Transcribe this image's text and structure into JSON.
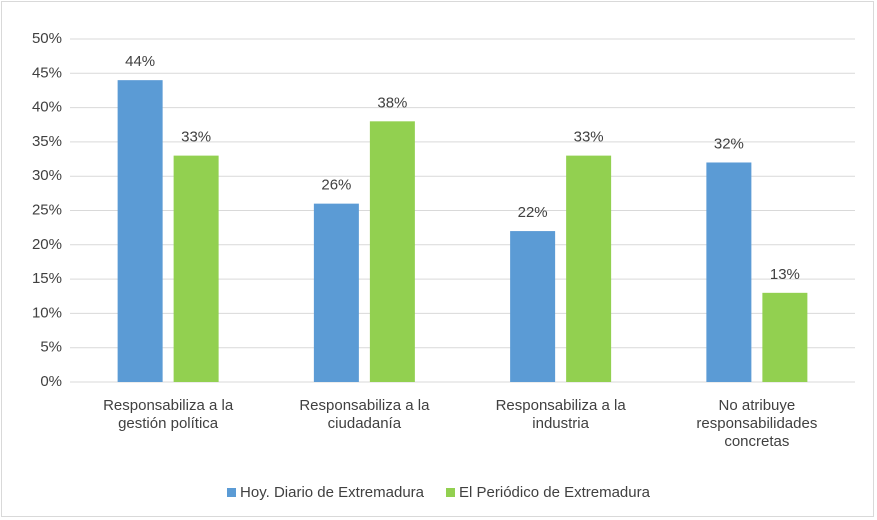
{
  "chart_data": {
    "type": "bar",
    "categories": [
      "Responsabiliza a la gestión política",
      "Responsabiliza a la ciudadanía",
      "Responsabiliza a la industria",
      "No atribuye responsabilidades concretas"
    ],
    "series": [
      {
        "name": "Hoy. Diario de Extremadura",
        "color": "#5b9bd5",
        "values": [
          44,
          26,
          22,
          32
        ],
        "value_labels": [
          "44%",
          "26%",
          "22%",
          "32%"
        ]
      },
      {
        "name": "El Periódico de Extremadura",
        "color": "#92d050",
        "values": [
          33,
          38,
          33,
          13
        ],
        "value_labels": [
          "33%",
          "38%",
          "33%",
          "13%"
        ]
      }
    ],
    "ylim": [
      0,
      50
    ],
    "yticks": [
      {
        "value": 0,
        "label": "0%"
      },
      {
        "value": 5,
        "label": "5%"
      },
      {
        "value": 10,
        "label": "10%"
      },
      {
        "value": 15,
        "label": "15%"
      },
      {
        "value": 20,
        "label": "20%"
      },
      {
        "value": 25,
        "label": "25%"
      },
      {
        "value": 30,
        "label": "30%"
      },
      {
        "value": 35,
        "label": "35%"
      },
      {
        "value": 40,
        "label": "40%"
      },
      {
        "value": 45,
        "label": "45%"
      },
      {
        "value": 50,
        "label": "50%"
      }
    ],
    "grid": true,
    "legend": "bottom"
  }
}
